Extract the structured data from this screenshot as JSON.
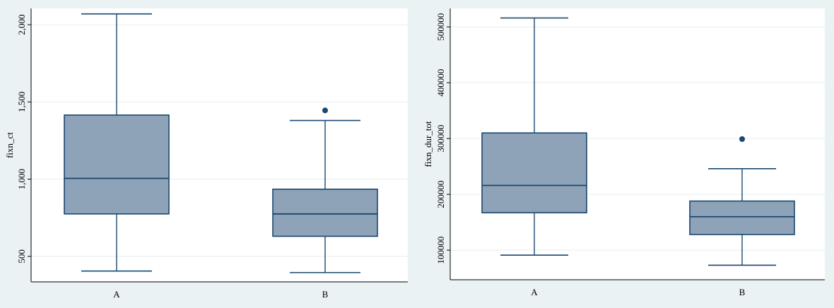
{
  "colors": {
    "page_background": "#eaf2f3",
    "plot_background": "#ffffff",
    "box_fill": "#8ea3b8",
    "box_stroke": "#1a476f",
    "outlier": "#1a476f",
    "gridline": "#e8eef1"
  },
  "chart_data": [
    {
      "type": "box",
      "title": "",
      "xlabel": "",
      "ylabel": "fixn_ct",
      "grid": true,
      "categories": [
        "A",
        "B"
      ],
      "ylim": [
        335,
        2105
      ],
      "yticks": [
        500,
        1000,
        1500,
        2000
      ],
      "ytick_labels": [
        "500",
        "1,000",
        "1,500",
        "2,000"
      ],
      "boxes": [
        {
          "category": "A",
          "lower_whisker": 405,
          "q1": 775,
          "median": 1005,
          "q3": 1415,
          "upper_whisker": 2070,
          "outliers": []
        },
        {
          "category": "B",
          "lower_whisker": 395,
          "q1": 630,
          "median": 775,
          "q3": 935,
          "upper_whisker": 1380,
          "outliers": [
            1445
          ]
        }
      ]
    },
    {
      "type": "box",
      "title": "",
      "xlabel": "",
      "ylabel": "fixn_dur_tot",
      "grid": true,
      "categories": [
        "A",
        "B"
      ],
      "ylim": [
        47000,
        533000
      ],
      "yticks": [
        100000,
        200000,
        300000,
        400000,
        500000
      ],
      "ytick_labels": [
        "100000",
        "200000",
        "300000",
        "400000",
        "500000"
      ],
      "boxes": [
        {
          "category": "A",
          "lower_whisker": 91000,
          "q1": 167000,
          "median": 216000,
          "q3": 310000,
          "upper_whisker": 516000,
          "outliers": []
        },
        {
          "category": "B",
          "lower_whisker": 73000,
          "q1": 128000,
          "median": 160000,
          "q3": 188000,
          "upper_whisker": 246000,
          "outliers": [
            299000
          ]
        }
      ]
    }
  ]
}
